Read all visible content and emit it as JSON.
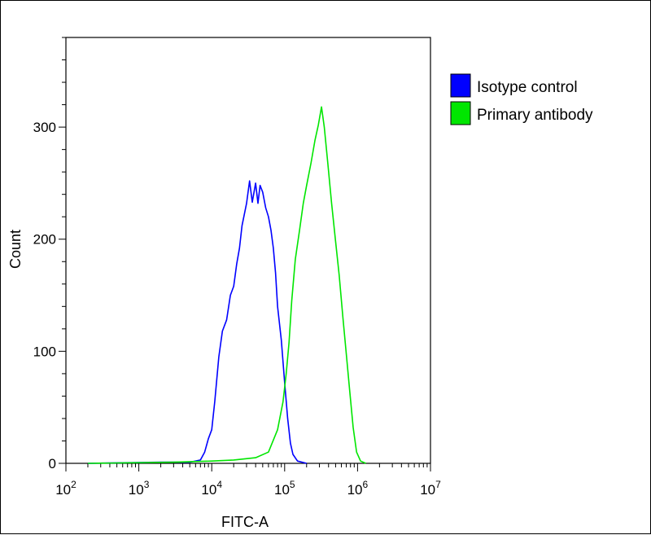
{
  "chart_data": {
    "type": "line",
    "xlabel": "FITC-A",
    "ylabel": "Count",
    "x_scale": "log",
    "xlim": [
      100,
      10000000
    ],
    "ylim": [
      0,
      380
    ],
    "x_ticks": [
      {
        "base": "10",
        "exp": "2",
        "value": 100
      },
      {
        "base": "10",
        "exp": "3",
        "value": 1000
      },
      {
        "base": "10",
        "exp": "4",
        "value": 10000
      },
      {
        "base": "10",
        "exp": "5",
        "value": 100000
      },
      {
        "base": "10",
        "exp": "6",
        "value": 1000000
      },
      {
        "base": "10",
        "exp": "7",
        "value": 10000000
      }
    ],
    "y_ticks": [
      {
        "label": "0",
        "value": 0
      },
      {
        "label": "100",
        "value": 100
      },
      {
        "label": "200",
        "value": 200
      },
      {
        "label": "300",
        "value": 300
      }
    ],
    "legend_position": "right",
    "series": [
      {
        "name": "Isotype control",
        "color": "#0000ff",
        "points": [
          [
            200,
            0
          ],
          [
            2000,
            1
          ],
          [
            5000,
            1
          ],
          [
            7000,
            3
          ],
          [
            8000,
            10
          ],
          [
            9000,
            22
          ],
          [
            10000,
            30
          ],
          [
            11000,
            55
          ],
          [
            12500,
            95
          ],
          [
            14000,
            118
          ],
          [
            16000,
            128
          ],
          [
            18000,
            150
          ],
          [
            20000,
            158
          ],
          [
            22000,
            178
          ],
          [
            24000,
            192
          ],
          [
            26000,
            212
          ],
          [
            30000,
            232
          ],
          [
            33000,
            252
          ],
          [
            36000,
            233
          ],
          [
            40000,
            250
          ],
          [
            43000,
            232
          ],
          [
            46000,
            248
          ],
          [
            50000,
            242
          ],
          [
            55000,
            228
          ],
          [
            60000,
            220
          ],
          [
            65000,
            208
          ],
          [
            70000,
            192
          ],
          [
            75000,
            170
          ],
          [
            80000,
            140
          ],
          [
            90000,
            110
          ],
          [
            100000,
            72
          ],
          [
            110000,
            40
          ],
          [
            120000,
            18
          ],
          [
            130000,
            8
          ],
          [
            150000,
            2
          ],
          [
            200000,
            0
          ]
        ]
      },
      {
        "name": "Primary antibody",
        "color": "#00e600",
        "points": [
          [
            200,
            0
          ],
          [
            3000,
            1
          ],
          [
            10000,
            2
          ],
          [
            20000,
            3
          ],
          [
            40000,
            5
          ],
          [
            60000,
            10
          ],
          [
            80000,
            30
          ],
          [
            95000,
            55
          ],
          [
            105000,
            80
          ],
          [
            115000,
            108
          ],
          [
            125000,
            145
          ],
          [
            140000,
            182
          ],
          [
            160000,
            208
          ],
          [
            180000,
            232
          ],
          [
            200000,
            248
          ],
          [
            230000,
            268
          ],
          [
            260000,
            288
          ],
          [
            290000,
            302
          ],
          [
            320000,
            318
          ],
          [
            350000,
            300
          ],
          [
            390000,
            268
          ],
          [
            440000,
            232
          ],
          [
            500000,
            198
          ],
          [
            560000,
            168
          ],
          [
            630000,
            130
          ],
          [
            700000,
            98
          ],
          [
            780000,
            65
          ],
          [
            870000,
            32
          ],
          [
            970000,
            10
          ],
          [
            1100000,
            2
          ],
          [
            1300000,
            0
          ]
        ]
      }
    ]
  }
}
